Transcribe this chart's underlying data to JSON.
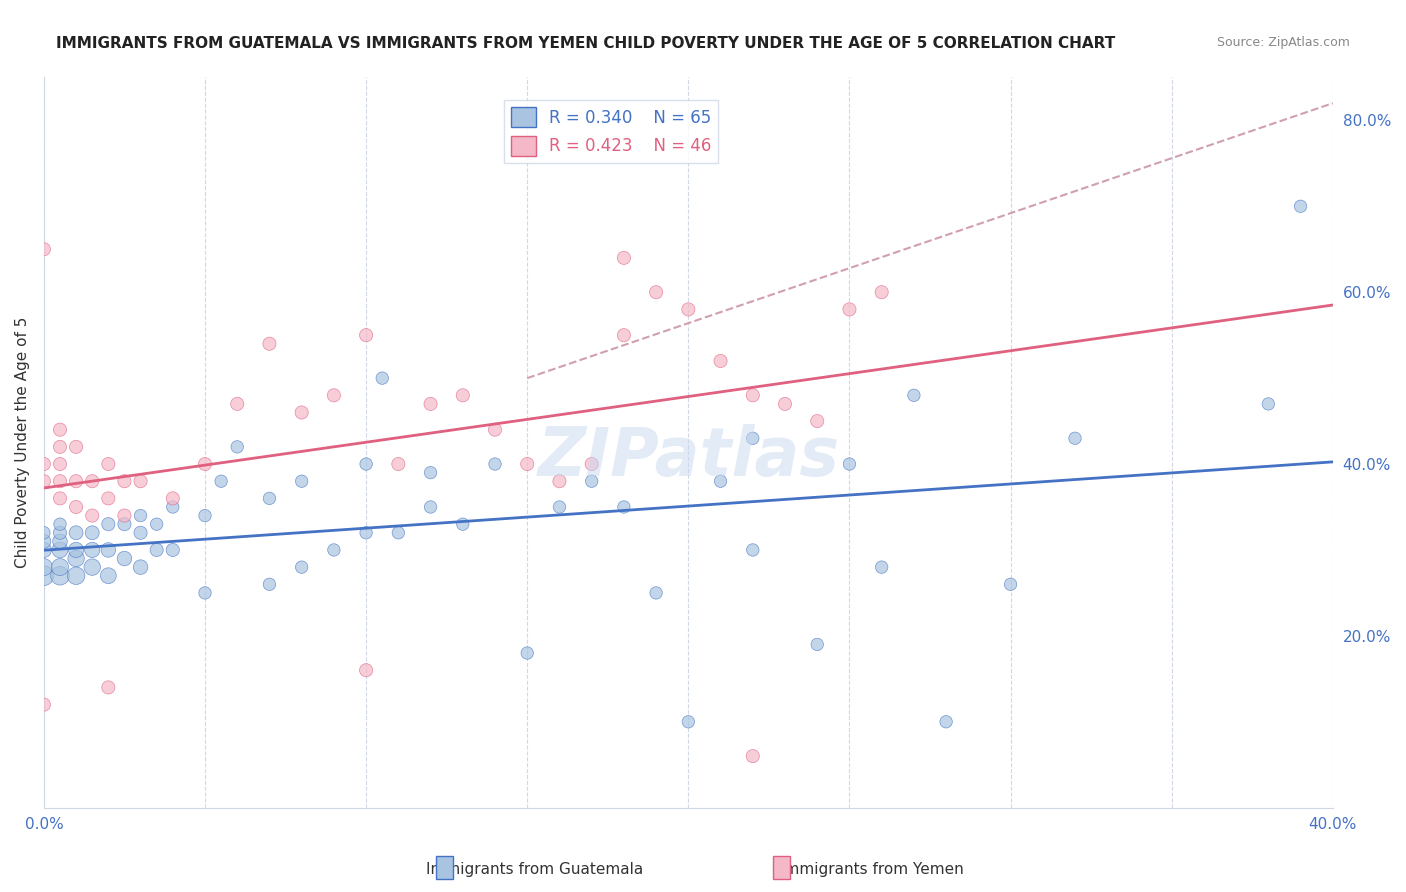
{
  "title": "IMMIGRANTS FROM GUATEMALA VS IMMIGRANTS FROM YEMEN CHILD POVERTY UNDER THE AGE OF 5 CORRELATION CHART",
  "source": "Source: ZipAtlas.com",
  "xlabel_bottom": "",
  "ylabel_left": "Child Poverty Under the Age of 5",
  "x_min": 0.0,
  "x_max": 0.4,
  "y_min": 0.0,
  "y_max": 0.85,
  "x_ticks": [
    0.0,
    0.05,
    0.1,
    0.15,
    0.2,
    0.25,
    0.3,
    0.35,
    0.4
  ],
  "x_tick_labels": [
    "0.0%",
    "",
    "",
    "",
    "",
    "",
    "",
    "",
    "40.0%"
  ],
  "y_ticks_right": [
    0.2,
    0.4,
    0.6,
    0.8
  ],
  "y_tick_labels_right": [
    "20.0%",
    "40.0%",
    "60.0%",
    "80.0%"
  ],
  "legend_r1": "R = 0.340",
  "legend_n1": "N = 65",
  "legend_r2": "R = 0.423",
  "legend_n2": "N = 46",
  "color_guatemala": "#a8c4e0",
  "color_guatemala_line": "#4472c4",
  "color_guatemala_dark": "#4472c4",
  "color_yemen": "#f4b8c8",
  "color_yemen_line": "#e06080",
  "color_yemen_dark": "#e06080",
  "color_diag": "#d0a0b0",
  "background_color": "#ffffff",
  "grid_color": "#d0d8e8",
  "watermark": "ZIPatlas",
  "guatemala_x": [
    0.0,
    0.0,
    0.0,
    0.0,
    0.0,
    0.005,
    0.005,
    0.005,
    0.005,
    0.005,
    0.005,
    0.01,
    0.01,
    0.01,
    0.01,
    0.015,
    0.015,
    0.015,
    0.02,
    0.02,
    0.02,
    0.025,
    0.025,
    0.03,
    0.03,
    0.03,
    0.035,
    0.035,
    0.04,
    0.04,
    0.05,
    0.05,
    0.055,
    0.06,
    0.07,
    0.07,
    0.08,
    0.08,
    0.09,
    0.1,
    0.1,
    0.105,
    0.11,
    0.12,
    0.12,
    0.13,
    0.14,
    0.15,
    0.16,
    0.17,
    0.18,
    0.19,
    0.2,
    0.21,
    0.22,
    0.22,
    0.24,
    0.25,
    0.26,
    0.27,
    0.28,
    0.3,
    0.32,
    0.38,
    0.39
  ],
  "guatemala_y": [
    0.27,
    0.28,
    0.3,
    0.31,
    0.32,
    0.27,
    0.28,
    0.3,
    0.31,
    0.32,
    0.33,
    0.27,
    0.29,
    0.3,
    0.32,
    0.28,
    0.3,
    0.32,
    0.27,
    0.3,
    0.33,
    0.29,
    0.33,
    0.28,
    0.32,
    0.34,
    0.3,
    0.33,
    0.3,
    0.35,
    0.25,
    0.34,
    0.38,
    0.42,
    0.26,
    0.36,
    0.28,
    0.38,
    0.3,
    0.32,
    0.4,
    0.5,
    0.32,
    0.35,
    0.39,
    0.33,
    0.4,
    0.18,
    0.35,
    0.38,
    0.35,
    0.25,
    0.1,
    0.38,
    0.43,
    0.3,
    0.19,
    0.4,
    0.28,
    0.48,
    0.1,
    0.26,
    0.43,
    0.47,
    0.7
  ],
  "guatemala_sizes": [
    200,
    150,
    120,
    100,
    80,
    180,
    150,
    130,
    110,
    90,
    80,
    160,
    140,
    120,
    100,
    140,
    120,
    100,
    130,
    110,
    90,
    110,
    90,
    110,
    90,
    80,
    90,
    80,
    90,
    80,
    80,
    80,
    80,
    80,
    80,
    80,
    80,
    80,
    80,
    80,
    80,
    80,
    80,
    80,
    80,
    80,
    80,
    80,
    80,
    80,
    80,
    80,
    80,
    80,
    80,
    80,
    80,
    80,
    80,
    80,
    80,
    80,
    80,
    80,
    80
  ],
  "yemen_x": [
    0.0,
    0.0,
    0.0,
    0.0,
    0.005,
    0.005,
    0.005,
    0.005,
    0.005,
    0.01,
    0.01,
    0.01,
    0.015,
    0.015,
    0.02,
    0.02,
    0.025,
    0.025,
    0.03,
    0.04,
    0.05,
    0.06,
    0.07,
    0.08,
    0.09,
    0.1,
    0.11,
    0.12,
    0.13,
    0.14,
    0.15,
    0.16,
    0.17,
    0.18,
    0.19,
    0.2,
    0.21,
    0.22,
    0.23,
    0.24,
    0.25,
    0.26,
    0.1,
    0.02,
    0.18,
    0.22
  ],
  "yemen_y": [
    0.65,
    0.4,
    0.38,
    0.12,
    0.36,
    0.38,
    0.4,
    0.42,
    0.44,
    0.35,
    0.38,
    0.42,
    0.34,
    0.38,
    0.36,
    0.4,
    0.34,
    0.38,
    0.38,
    0.36,
    0.4,
    0.47,
    0.54,
    0.46,
    0.48,
    0.55,
    0.4,
    0.47,
    0.48,
    0.44,
    0.4,
    0.38,
    0.4,
    0.55,
    0.6,
    0.58,
    0.52,
    0.48,
    0.47,
    0.45,
    0.58,
    0.6,
    0.16,
    0.14,
    0.64,
    0.06
  ],
  "yemen_sizes": [
    90,
    90,
    90,
    90,
    90,
    90,
    90,
    90,
    90,
    90,
    90,
    90,
    90,
    90,
    90,
    90,
    90,
    90,
    90,
    90,
    90,
    90,
    90,
    90,
    90,
    90,
    90,
    90,
    90,
    90,
    90,
    90,
    90,
    90,
    90,
    90,
    90,
    90,
    90,
    90,
    90,
    90,
    90,
    90,
    90,
    90
  ]
}
